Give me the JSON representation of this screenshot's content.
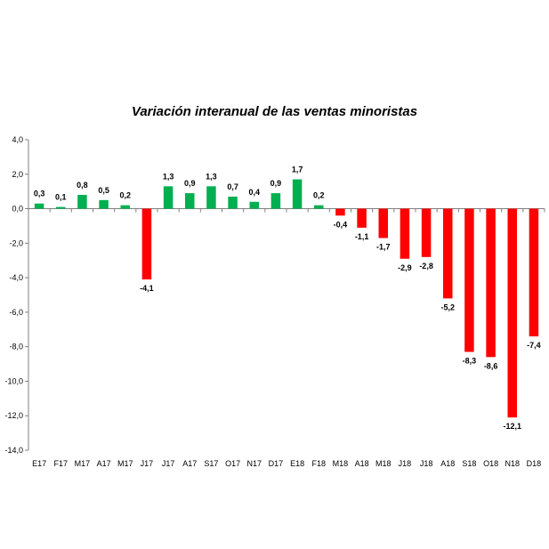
{
  "chart_data": {
    "type": "bar",
    "title": "Variación interanual de las ventas minoristas",
    "xlabel": "",
    "ylabel": "",
    "ylim": [
      -14,
      4
    ],
    "yticks": [
      4,
      2,
      0,
      -2,
      -4,
      -6,
      -8,
      -10,
      -12,
      -14
    ],
    "ytick_labels": [
      "4,0",
      "2,0",
      "0,0",
      "-2,0",
      "-4,0",
      "-6,0",
      "-8,0",
      "-10,0",
      "-12,0",
      "-14,0"
    ],
    "categories": [
      "E17",
      "F17",
      "M17",
      "A17",
      "M17",
      "J17",
      "J17",
      "A17",
      "S17",
      "O17",
      "N17",
      "D17",
      "E18",
      "F18",
      "M18",
      "A18",
      "M18",
      "J18",
      "J18",
      "A18",
      "S18",
      "O18",
      "N18",
      "D18"
    ],
    "values": [
      0.3,
      0.1,
      0.8,
      0.5,
      0.2,
      -4.1,
      1.3,
      0.9,
      1.3,
      0.7,
      0.4,
      0.9,
      1.7,
      0.2,
      -0.4,
      -1.1,
      -1.7,
      -2.9,
      -2.8,
      -5.2,
      -8.3,
      -8.6,
      -12.1,
      -7.4
    ],
    "value_labels": [
      "0,3",
      "0,1",
      "0,8",
      "0,5",
      "0,2",
      "-4,1",
      "1,3",
      "0,9",
      "1,3",
      "0,7",
      "0,4",
      "0,9",
      "1,7",
      "0,2",
      "-0,4",
      "-1,1",
      "-1,7",
      "-2,9",
      "-2,8",
      "-5,2",
      "-8,3",
      "-8,6",
      "-12,1",
      "-7,4"
    ],
    "grid": false,
    "legend": "none",
    "colors": {
      "positive": "#00b050",
      "negative": "#ff0000",
      "axis": "#808080",
      "text": "#000000"
    }
  }
}
